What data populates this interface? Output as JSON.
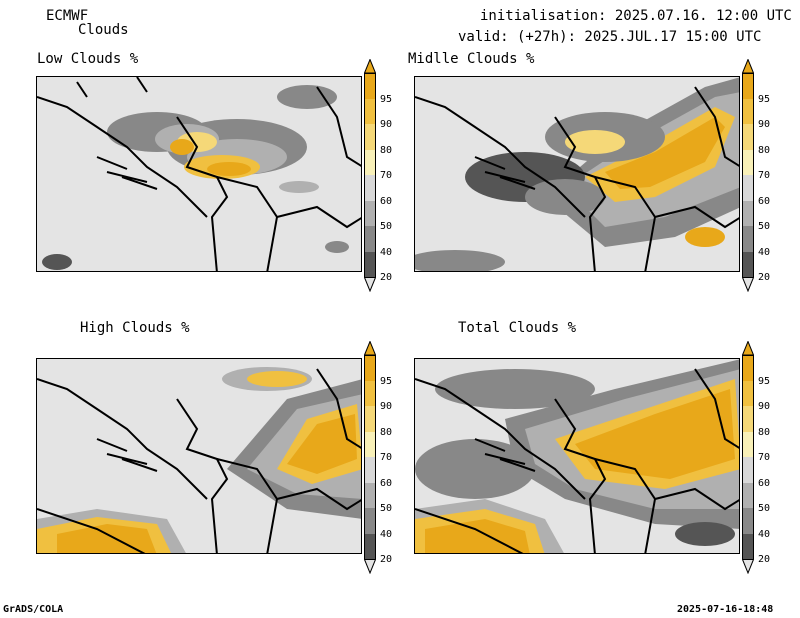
{
  "header": {
    "source": "ECMWF",
    "product": "Clouds",
    "init": "initialisation: 2025.07.16. 12:00 UTC",
    "valid": "valid: (+27h): 2025.JUL.17 15:00 UTC"
  },
  "footer": {
    "left": "GrADS/COLA",
    "right": "2025-07-16-18:48"
  },
  "panels": [
    {
      "title": "Low Clouds %"
    },
    {
      "title": "Midlle Clouds %"
    },
    {
      "title": "High Clouds %"
    },
    {
      "title": "Total Clouds %"
    }
  ],
  "colorbar": {
    "levels": [
      "95",
      "90",
      "80",
      "70",
      "60",
      "50",
      "40",
      "20"
    ],
    "colors": {
      "c95": "#e8a81a",
      "c90": "#f0c040",
      "c80": "#f5d878",
      "c70": "#f8f0b8",
      "c60": "#d8d8d8",
      "c50": "#b0b0b0",
      "c40": "#888888",
      "c20": "#555555",
      "below": "#e4e4e4"
    }
  }
}
